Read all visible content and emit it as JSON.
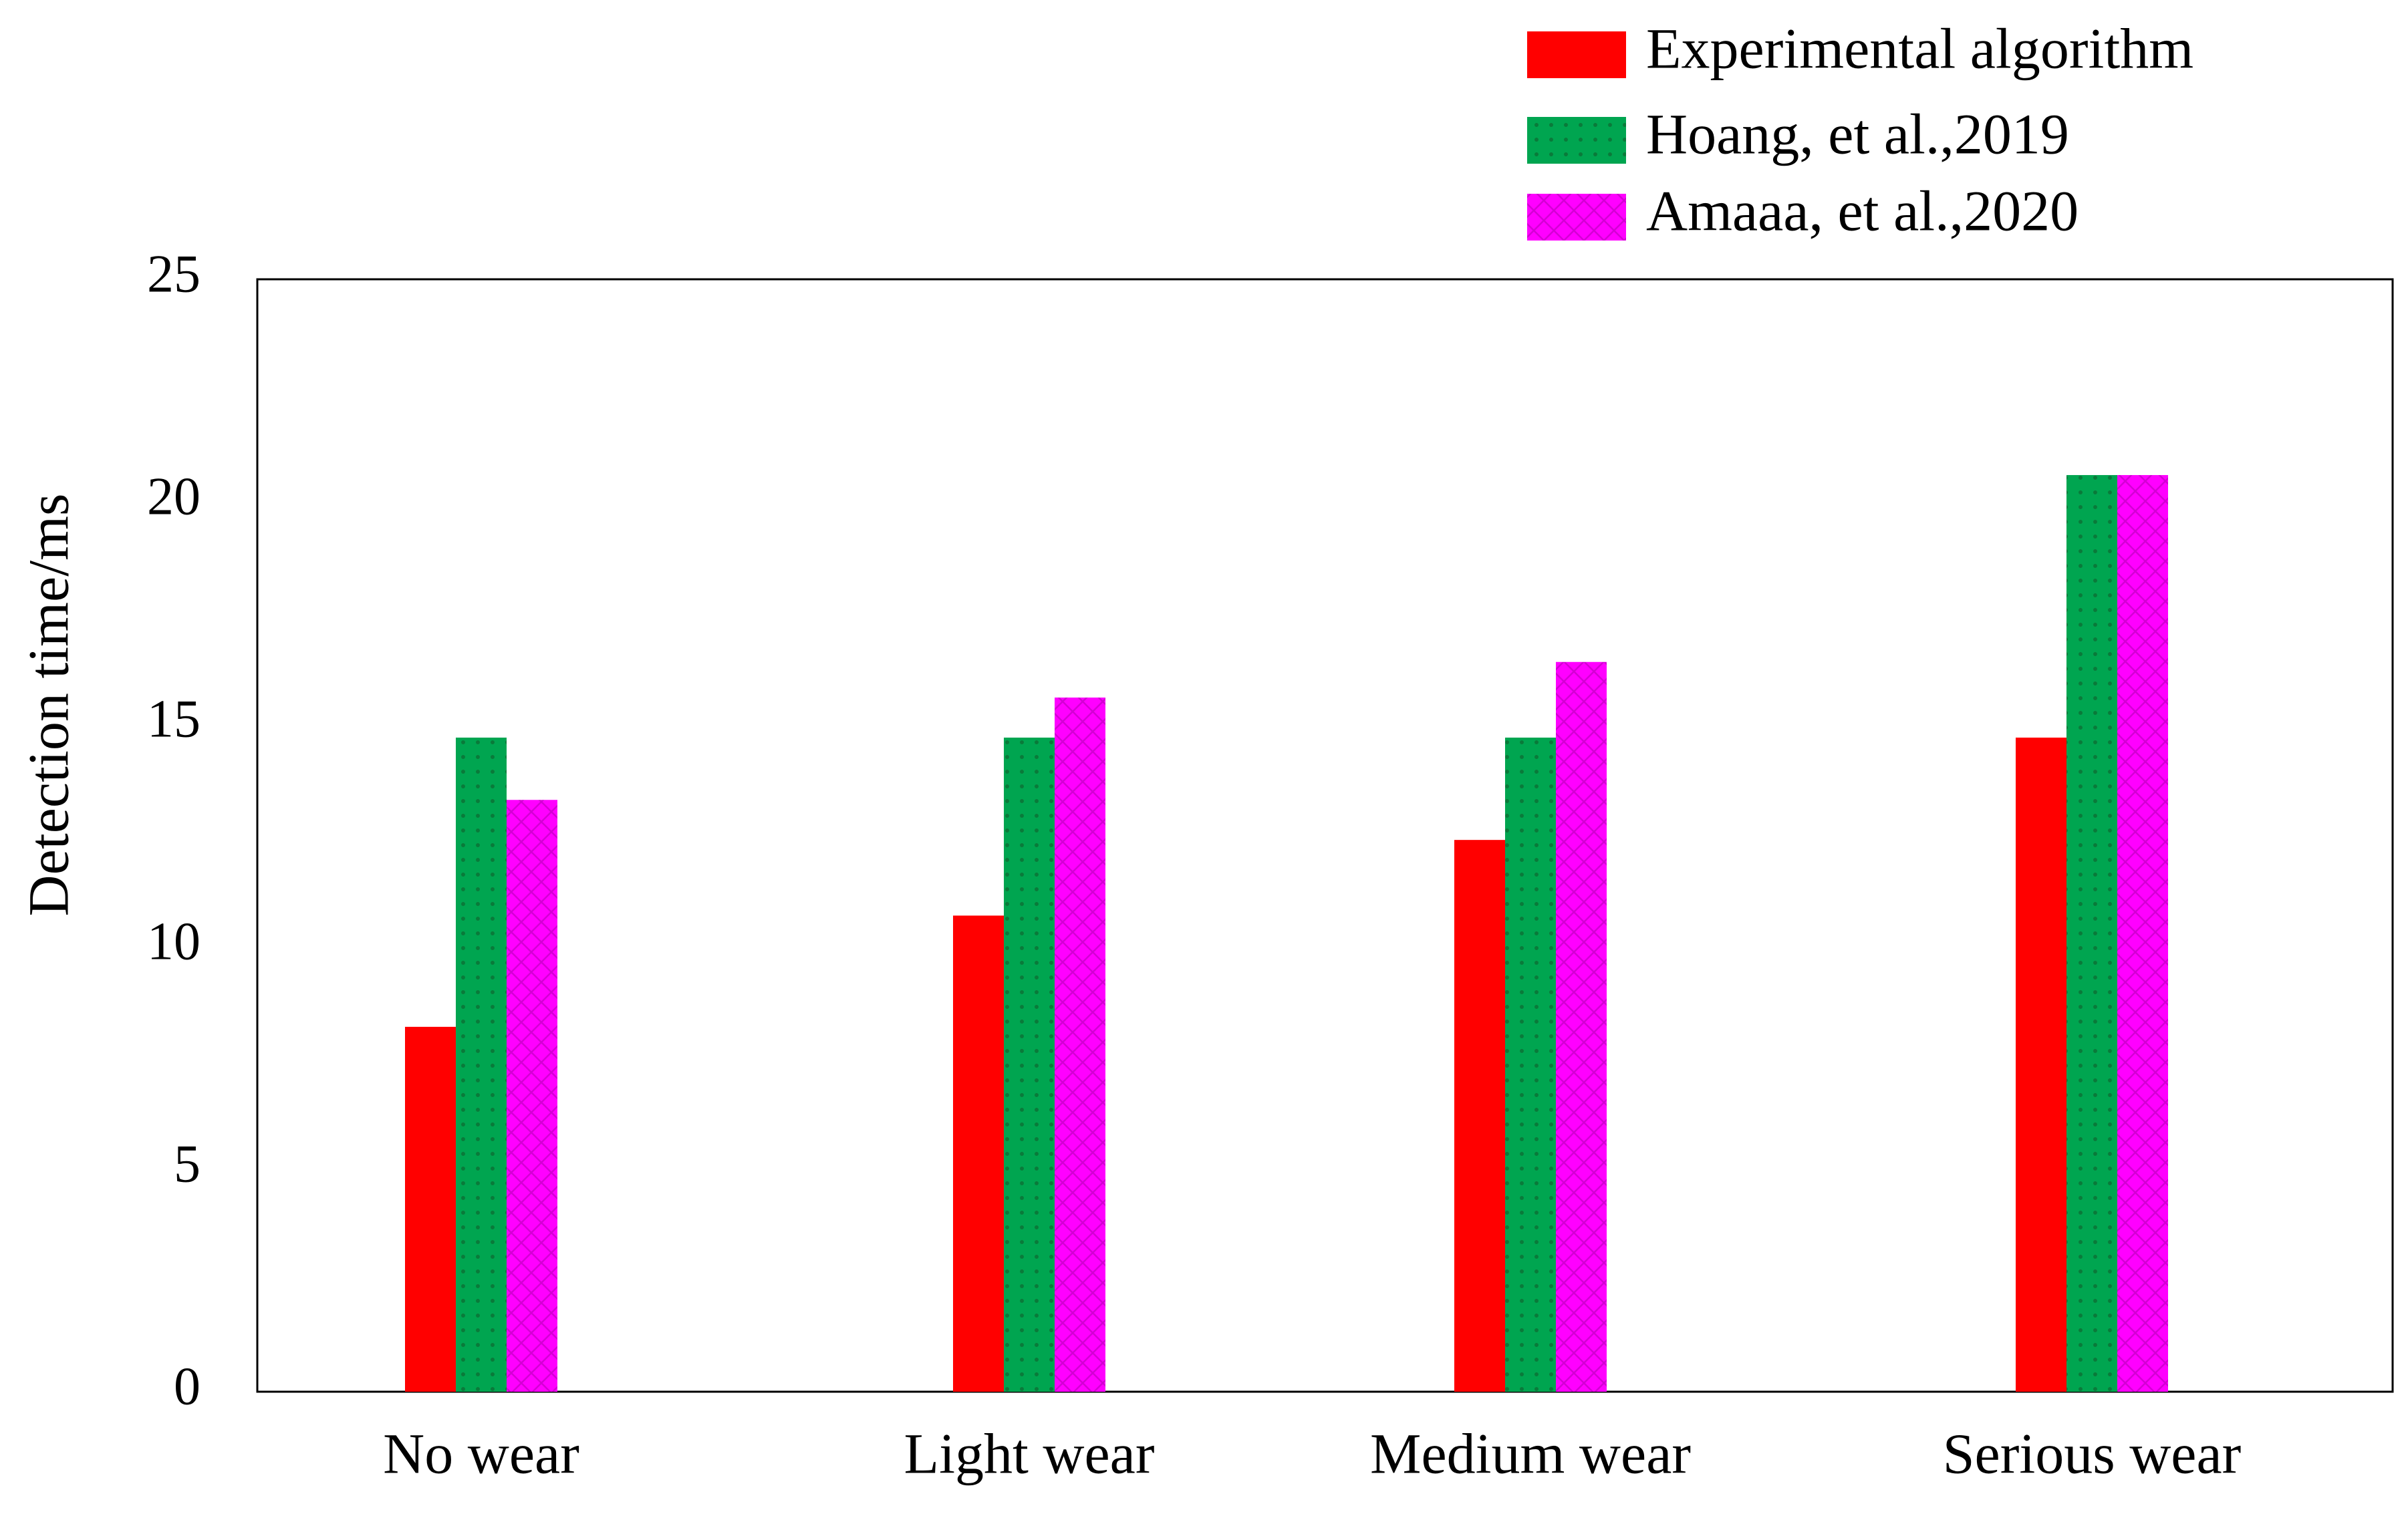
{
  "chart_data": {
    "type": "bar",
    "title": "",
    "xlabel": "",
    "ylabel": "Detection time/ms",
    "ylim": [
      0,
      25
    ],
    "yticks": [
      0,
      5,
      10,
      15,
      20,
      25
    ],
    "grid": false,
    "legend_position": "top-right",
    "categories": [
      "No wear",
      "Light wear",
      "Medium wear",
      "Serious wear"
    ],
    "series": [
      {
        "name": "Experimental algorithm",
        "color": "#ff0000",
        "pattern": "solid",
        "values": [
          8.2,
          10.7,
          12.4,
          14.7
        ]
      },
      {
        "name": "Hoang, et al.,2019",
        "color": "#00a550",
        "pattern": "dots",
        "values": [
          14.7,
          14.7,
          14.7,
          20.6
        ]
      },
      {
        "name": "Amaaa, et al.,2020",
        "color": "#ff00ff",
        "pattern": "crosshatch",
        "values": [
          13.3,
          15.6,
          16.4,
          20.6
        ]
      }
    ]
  }
}
